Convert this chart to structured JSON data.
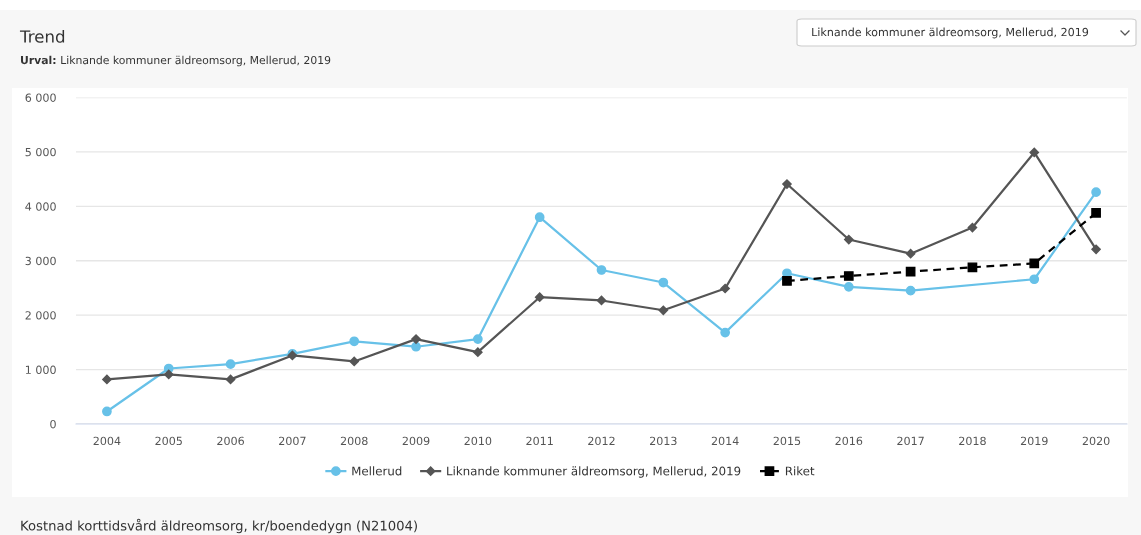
{
  "chart_data": {
    "type": "line",
    "title": "Trend",
    "subtitle": "Urval: Liknande kommuner äldreomsorg, Mellerud, 2019",
    "annotations": [
      "Liknande kommuner äldreomsorg, Mellerud, 2019",
      "Kostnad korttidsvård äldreomsorg, kr/boendedygn (N21004)"
    ],
    "categories": [
      "2004",
      "2005",
      "2006",
      "2007",
      "2008",
      "2009",
      "2010",
      "2011",
      "2012",
      "2013",
      "2014",
      "2015",
      "2016",
      "2017",
      "2018",
      "2019",
      "2020"
    ],
    "series": [
      {
        "name": "Mellerud",
        "color": "#67c1e8",
        "marker": "circle",
        "line_style": "solid",
        "values": [
          230,
          1020,
          1100,
          1290,
          1520,
          1420,
          1560,
          3800,
          2830,
          2600,
          1680,
          2770,
          2520,
          2450,
          null,
          2660,
          4260
        ]
      },
      {
        "name": "Liknande kommuner äldreomsorg, Mellerud, 2019",
        "color": "#555555",
        "marker": "diamond",
        "line_style": "solid",
        "values": [
          820,
          910,
          820,
          1260,
          1150,
          1560,
          1320,
          2330,
          2270,
          2090,
          2490,
          4410,
          3390,
          3130,
          3610,
          4990,
          3210
        ]
      },
      {
        "name": "Riket",
        "color": "#000000",
        "marker": "square",
        "line_style": "dashed",
        "values": [
          null,
          null,
          null,
          null,
          null,
          null,
          null,
          null,
          null,
          null,
          null,
          2630,
          2720,
          2800,
          2880,
          2950,
          3880
        ]
      }
    ],
    "ylim": [
      0,
      6000
    ],
    "yticks": [
      0,
      {
        "value": 1000,
        "label": "1 000"
      },
      {
        "value": 2000,
        "label": "2 000"
      },
      {
        "value": 3000,
        "label": "3 000"
      },
      {
        "value": 4000,
        "label": "4 000"
      },
      {
        "value": 5000,
        "label": "5 000"
      },
      {
        "value": 6000,
        "label": "6 000"
      }
    ],
    "grid": "y",
    "legend": "bottom"
  }
}
